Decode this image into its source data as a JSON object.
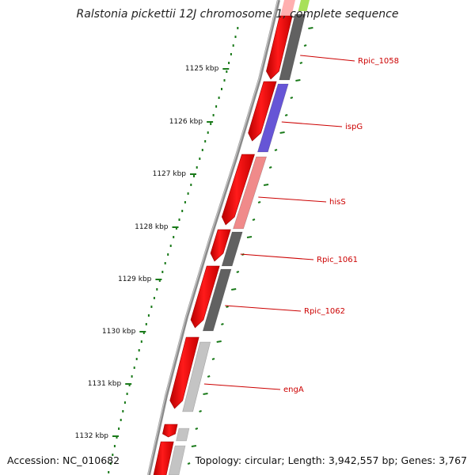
{
  "title": "Ralstonia pickettii 12J chromosome 1, complete sequence",
  "accession": "Accession: NC_010682",
  "topology": "Topology: circular; Length: 3,942,557 bp; Genes: 3,767",
  "scale_labels": [
    {
      "text": "1125 kbp",
      "kbp": 1125
    },
    {
      "text": "1126 kbp",
      "kbp": 1126
    },
    {
      "text": "1127 kbp",
      "kbp": 1127
    },
    {
      "text": "1128 kbp",
      "kbp": 1128
    },
    {
      "text": "1129 kbp",
      "kbp": 1129
    },
    {
      "text": "1130 kbp",
      "kbp": 1130
    },
    {
      "text": "1131 kbp",
      "kbp": 1131
    },
    {
      "text": "1132 kbp",
      "kbp": 1132
    }
  ],
  "genes": [
    {
      "label": "Rpic_1058",
      "color": "#616161"
    },
    {
      "label": "ispG",
      "color": "#6655d6"
    },
    {
      "label": "hisS",
      "color": "#f08a8a"
    },
    {
      "label": "Rpic_1061",
      "color": "#616161"
    },
    {
      "label": "Rpic_1062",
      "color": "#616161"
    },
    {
      "label": "engA",
      "color": "#c4c4c4"
    }
  ],
  "colors": {
    "forward_strand": "#ee0000",
    "backbone": "#808080",
    "tick": "#1a7a1a",
    "label": "#cc0000"
  }
}
